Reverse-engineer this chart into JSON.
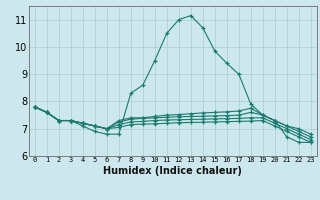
{
  "title": "",
  "xlabel": "Humidex (Indice chaleur)",
  "bg_color": "#cce8ee",
  "grid_color": "#aaccd4",
  "line_color": "#1a7a6e",
  "xlim": [
    -0.5,
    23.5
  ],
  "ylim": [
    6,
    11.5
  ],
  "yticks": [
    6,
    7,
    8,
    9,
    10,
    11
  ],
  "xticks": [
    0,
    1,
    2,
    3,
    4,
    5,
    6,
    7,
    8,
    9,
    10,
    11,
    12,
    13,
    14,
    15,
    16,
    17,
    18,
    19,
    20,
    21,
    22,
    23
  ],
  "lines": [
    [
      7.8,
      7.6,
      7.3,
      7.3,
      7.1,
      6.9,
      6.8,
      6.8,
      8.3,
      8.6,
      9.5,
      10.5,
      11.0,
      11.15,
      10.7,
      9.85,
      9.4,
      9.0,
      7.9,
      7.5,
      7.3,
      6.7,
      6.5,
      6.5
    ],
    [
      7.8,
      7.6,
      7.3,
      7.3,
      7.2,
      7.1,
      7.0,
      7.3,
      7.4,
      7.4,
      7.45,
      7.5,
      7.52,
      7.55,
      7.58,
      7.6,
      7.62,
      7.65,
      7.75,
      7.5,
      7.3,
      7.1,
      7.0,
      6.8
    ],
    [
      7.8,
      7.6,
      7.3,
      7.3,
      7.2,
      7.1,
      7.0,
      7.25,
      7.35,
      7.38,
      7.4,
      7.42,
      7.44,
      7.45,
      7.46,
      7.47,
      7.48,
      7.5,
      7.6,
      7.5,
      7.3,
      7.1,
      6.9,
      6.7
    ],
    [
      7.8,
      7.6,
      7.3,
      7.3,
      7.2,
      7.1,
      7.0,
      7.15,
      7.25,
      7.27,
      7.3,
      7.32,
      7.33,
      7.34,
      7.35,
      7.36,
      7.37,
      7.38,
      7.4,
      7.4,
      7.2,
      7.0,
      6.8,
      6.6
    ],
    [
      7.8,
      7.6,
      7.3,
      7.3,
      7.2,
      7.1,
      7.0,
      7.05,
      7.15,
      7.17,
      7.18,
      7.2,
      7.22,
      7.23,
      7.24,
      7.25,
      7.26,
      7.27,
      7.28,
      7.3,
      7.1,
      6.9,
      6.7,
      6.5
    ]
  ]
}
